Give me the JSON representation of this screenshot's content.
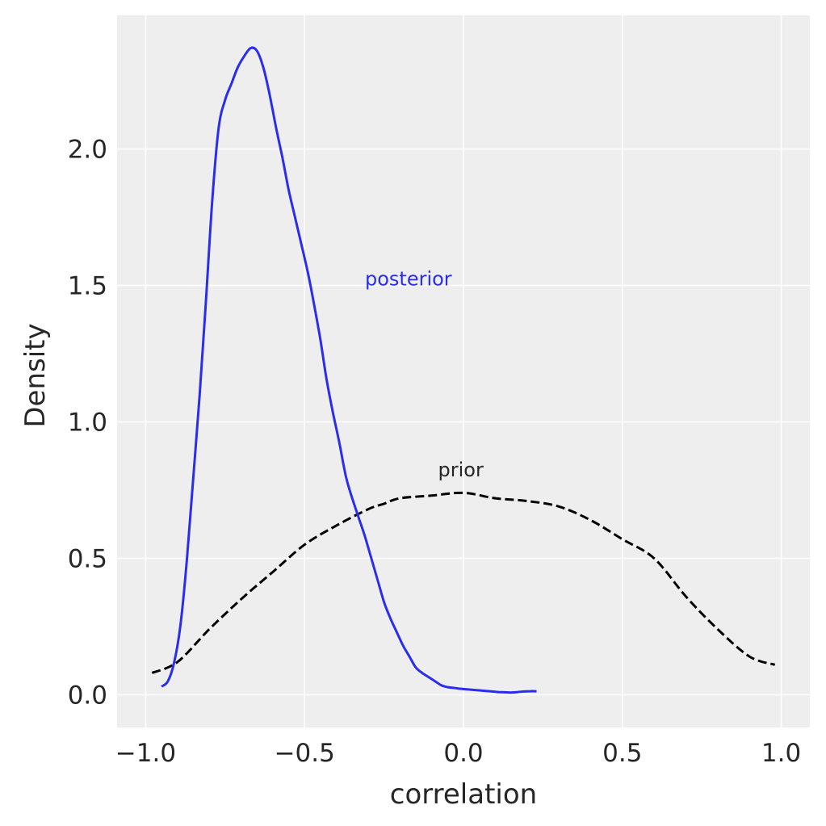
{
  "chart_data": {
    "type": "line",
    "title": "",
    "xlabel": "correlation",
    "ylabel": "Density",
    "xlim": [
      -1.09,
      1.09
    ],
    "ylim": [
      -0.12,
      2.49
    ],
    "grid": true,
    "xticks": [
      -1.0,
      -0.5,
      0.0,
      0.5,
      1.0
    ],
    "xtick_labels": [
      "−1.0",
      "−0.5",
      "0.0",
      "0.5",
      "1.0"
    ],
    "yticks": [
      0.0,
      0.5,
      1.0,
      1.5,
      2.0
    ],
    "ytick_labels": [
      "0.0",
      "0.5",
      "1.0",
      "1.5",
      "2.0"
    ],
    "annotations": [
      {
        "text": "posterior",
        "x": -0.31,
        "y": 1.5,
        "color": "#2a2eec"
      },
      {
        "text": "prior",
        "x": -0.08,
        "y": 0.8,
        "color": "#262626"
      }
    ],
    "series": [
      {
        "label": "posterior",
        "color": "#2a2eec",
        "dash": "solid",
        "x": [
          -0.95,
          -0.93,
          -0.91,
          -0.89,
          -0.87,
          -0.85,
          -0.83,
          -0.81,
          -0.79,
          -0.77,
          -0.75,
          -0.73,
          -0.71,
          -0.69,
          -0.67,
          -0.65,
          -0.63,
          -0.61,
          -0.59,
          -0.57,
          -0.55,
          -0.53,
          -0.51,
          -0.49,
          -0.47,
          -0.45,
          -0.43,
          -0.41,
          -0.39,
          -0.37,
          -0.35,
          -0.33,
          -0.31,
          -0.29,
          -0.27,
          -0.25,
          -0.23,
          -0.21,
          -0.19,
          -0.17,
          -0.15,
          -0.13,
          -0.11,
          -0.09,
          -0.07,
          -0.05,
          -0.03,
          -0.01,
          0.01,
          0.03,
          0.05,
          0.07,
          0.09,
          0.11,
          0.13,
          0.15,
          0.17,
          0.19,
          0.21,
          0.23
        ],
        "y": [
          0.03,
          0.05,
          0.12,
          0.26,
          0.5,
          0.8,
          1.1,
          1.45,
          1.82,
          2.08,
          2.18,
          2.24,
          2.3,
          2.34,
          2.37,
          2.36,
          2.3,
          2.2,
          2.08,
          1.97,
          1.85,
          1.75,
          1.65,
          1.55,
          1.43,
          1.3,
          1.15,
          1.03,
          0.92,
          0.8,
          0.72,
          0.65,
          0.58,
          0.5,
          0.42,
          0.34,
          0.28,
          0.23,
          0.18,
          0.14,
          0.1,
          0.08,
          0.065,
          0.05,
          0.035,
          0.028,
          0.025,
          0.022,
          0.02,
          0.018,
          0.016,
          0.014,
          0.012,
          0.01,
          0.009,
          0.008,
          0.01,
          0.012,
          0.013,
          0.013
        ]
      },
      {
        "label": "prior",
        "color": "#000000",
        "dash": "dashed",
        "x": [
          -0.98,
          -0.9,
          -0.8,
          -0.7,
          -0.6,
          -0.5,
          -0.4,
          -0.3,
          -0.25,
          -0.2,
          -0.1,
          0.0,
          0.1,
          0.2,
          0.3,
          0.4,
          0.5,
          0.6,
          0.7,
          0.8,
          0.9,
          0.98
        ],
        "y": [
          0.08,
          0.12,
          0.24,
          0.35,
          0.45,
          0.55,
          0.62,
          0.68,
          0.7,
          0.72,
          0.73,
          0.74,
          0.72,
          0.71,
          0.69,
          0.64,
          0.57,
          0.5,
          0.36,
          0.24,
          0.14,
          0.11
        ]
      }
    ]
  }
}
